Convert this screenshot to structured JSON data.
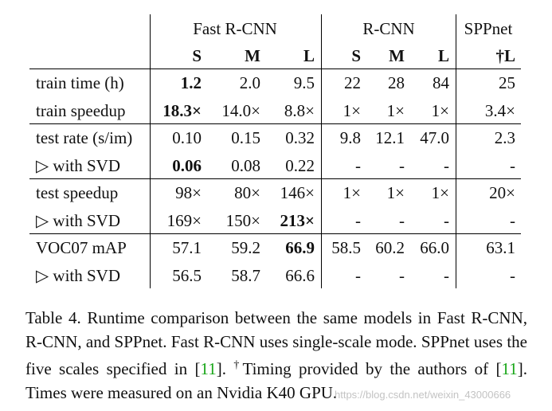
{
  "table": {
    "groups": [
      {
        "name": "Fast R-CNN",
        "cols": [
          "S",
          "M",
          "L"
        ]
      },
      {
        "name": "R-CNN",
        "cols": [
          "S",
          "M",
          "L"
        ]
      },
      {
        "name": "SPPnet",
        "cols": [
          "†L"
        ]
      }
    ],
    "rows": [
      {
        "label": "train time (h)",
        "values": [
          "1.2",
          "2.0",
          "9.5",
          "22",
          "28",
          "84",
          "25"
        ],
        "bold": [
          0
        ]
      },
      {
        "label": "train speedup",
        "values": [
          "18.3×",
          "14.0×",
          "8.8×",
          "1×",
          "1×",
          "1×",
          "3.4×"
        ],
        "bold": [
          0
        ]
      },
      {
        "label": "test rate (s/im)",
        "values": [
          "0.10",
          "0.15",
          "0.32",
          "9.8",
          "12.1",
          "47.0",
          "2.3"
        ],
        "bold": []
      },
      {
        "label": "▷ with SVD",
        "values": [
          "0.06",
          "0.08",
          "0.22",
          "-",
          "-",
          "-",
          "-"
        ],
        "bold": [
          0
        ]
      },
      {
        "label": "test speedup",
        "values": [
          "98×",
          "80×",
          "146×",
          "1×",
          "1×",
          "1×",
          "20×"
        ],
        "bold": []
      },
      {
        "label": "▷ with SVD",
        "values": [
          "169×",
          "150×",
          "213×",
          "-",
          "-",
          "-",
          "-"
        ],
        "bold": [
          2
        ]
      },
      {
        "label": "VOC07 mAP",
        "values": [
          "57.1",
          "59.2",
          "66.9",
          "58.5",
          "60.2",
          "66.0",
          "63.1"
        ],
        "bold": [
          2
        ]
      },
      {
        "label": "▷ with SVD",
        "values": [
          "56.5",
          "58.7",
          "66.6",
          "-",
          "-",
          "-",
          "-"
        ],
        "bold": []
      }
    ]
  },
  "caption": {
    "part1": "Table 4. Runtime comparison between the same models in Fast R-CNN, R-CNN, and SPPnet. Fast R-CNN uses single-scale mode. SPPnet uses the five scales specified in [",
    "ref1": "11",
    "part2": "]. ",
    "dagger": "†",
    "part3": "Timing provided by the authors of [",
    "ref2": "11",
    "part4": "]. Times were measured on an Nvidia K40 GPU."
  },
  "watermark": "https://blog.csdn.net/weixin_43000666"
}
